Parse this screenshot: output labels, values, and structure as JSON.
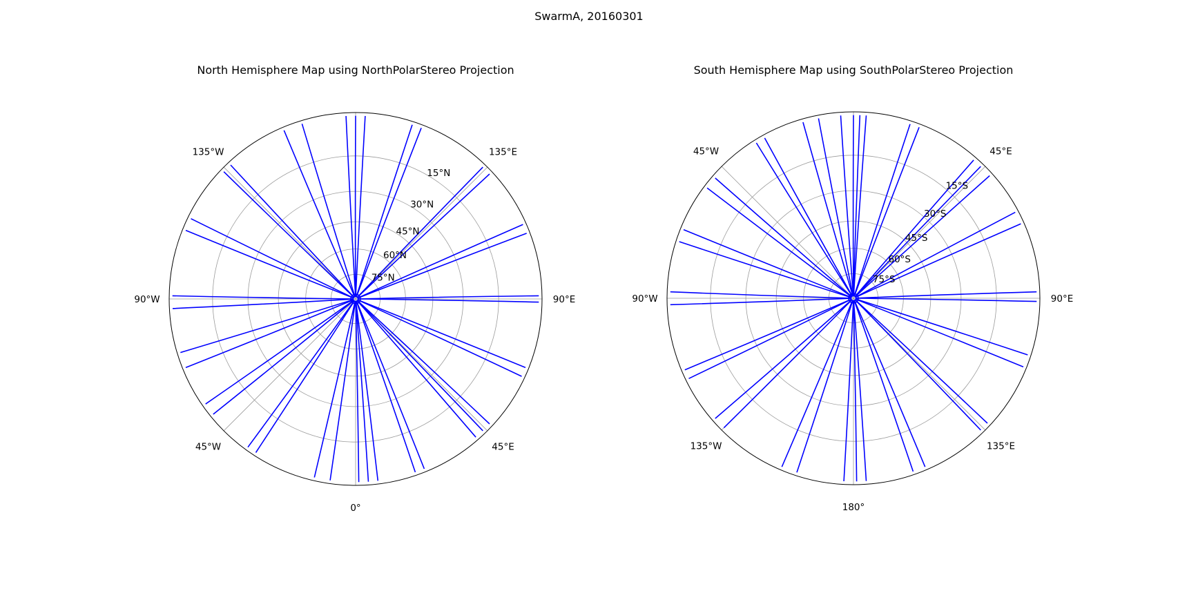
{
  "figure": {
    "suptitle": "SwarmA, 20160301"
  },
  "colors": {
    "track": "#0000ff",
    "grid": "#9a9a9a",
    "boundary": "#000000"
  },
  "maps": [
    {
      "title": "North Hemisphere Map using NorthPolarStereo Projection",
      "projection": "NorthPolarStereo",
      "hemisphere": "north",
      "lon_labels": [
        {
          "lon": -135,
          "text": "135°W"
        },
        {
          "lon": 135,
          "text": "135°E"
        },
        {
          "lon": -90,
          "text": "90°W"
        },
        {
          "lon": 90,
          "text": "90°E"
        },
        {
          "lon": -45,
          "text": "45°W"
        },
        {
          "lon": 45,
          "text": "45°E"
        },
        {
          "lon": 0,
          "text": "0°"
        }
      ],
      "lat_labels": [
        {
          "lat": 15,
          "text": "15°N"
        },
        {
          "lat": 30,
          "text": "30°N"
        },
        {
          "lat": 45,
          "text": "45°N"
        },
        {
          "lat": 60,
          "text": "60°N"
        },
        {
          "lat": 75,
          "text": "75°N"
        }
      ],
      "track_longitudes": [
        1,
        4,
        7,
        19,
        22,
        41,
        44,
        47,
        65,
        68,
        89,
        91,
        111,
        114,
        133,
        136,
        159,
        162,
        177,
        180,
        183,
        197,
        203,
        223,
        226,
        244,
        248,
        269,
        273,
        287,
        292,
        305,
        309,
        324,
        327,
        347,
        352
      ]
    },
    {
      "title": "South Hemisphere Map using SouthPolarStereo Projection",
      "projection": "SouthPolarStereo",
      "hemisphere": "south",
      "lon_labels": [
        {
          "lon": -45,
          "text": "45°W"
        },
        {
          "lon": 45,
          "text": "45°E"
        },
        {
          "lon": -90,
          "text": "90°W"
        },
        {
          "lon": 90,
          "text": "90°E"
        },
        {
          "lon": -135,
          "text": "135°W"
        },
        {
          "lon": 135,
          "text": "135°E"
        },
        {
          "lon": 180,
          "text": "180°"
        }
      ],
      "lat_labels": [
        {
          "lat": -75,
          "text": "75°S"
        },
        {
          "lat": -60,
          "text": "60°S"
        },
        {
          "lat": -45,
          "text": "45°S"
        },
        {
          "lat": -30,
          "text": "30°S"
        },
        {
          "lat": -15,
          "text": "15°S"
        }
      ],
      "track_longitudes": [
        0,
        2,
        4,
        18,
        21,
        41,
        44,
        48,
        62,
        66,
        88,
        91,
        108,
        112,
        133,
        136,
        157,
        161,
        176,
        179,
        183,
        198,
        203,
        225,
        229,
        244,
        247,
        268,
        272,
        288,
        292,
        307,
        311,
        328,
        331,
        344,
        349,
        356
      ]
    }
  ]
}
